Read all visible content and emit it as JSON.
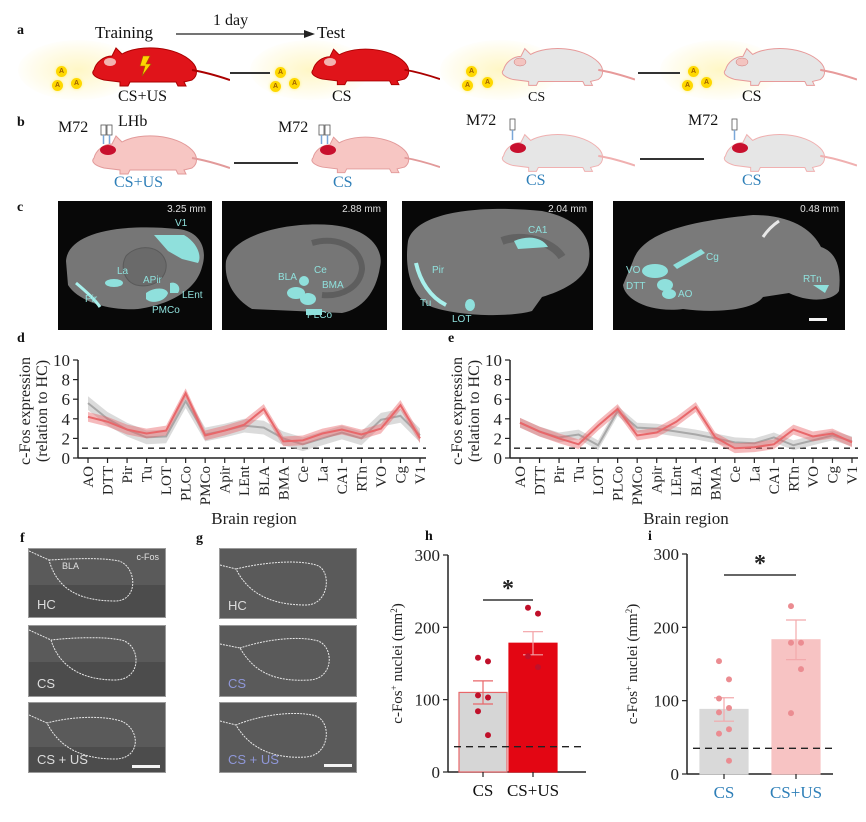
{
  "panel_labels": {
    "a": "a",
    "b": "b",
    "c": "c",
    "d": "d",
    "e": "e",
    "f": "f",
    "g": "g",
    "h": "h",
    "i": "i"
  },
  "panel_a": {
    "training": "Training",
    "interval": "1 day",
    "test": "Test",
    "odor_symbol": "A",
    "captions": [
      "CS+US",
      "CS",
      "CS",
      "CS"
    ],
    "colors": {
      "fear_mouse": "#e0141a",
      "control_mouse": "#e6e6e6",
      "odor": "#ffd800"
    }
  },
  "panel_b": {
    "implant": [
      "M72",
      "M72",
      "M72",
      "M72"
    ],
    "target": "LHb",
    "captions": [
      "CS+US",
      "CS",
      "CS",
      "CS"
    ],
    "colors": {
      "caption": "#2e7fb8",
      "pink_mouse": "#f7c6c3",
      "gray_mouse": "#e6e6e6"
    }
  },
  "panel_c": {
    "sections": [
      {
        "depth": "3.25 mm",
        "regions": [
          "V1",
          "La",
          "APir",
          "Pir",
          "LEnt",
          "PMCo"
        ]
      },
      {
        "depth": "2.88 mm",
        "regions": [
          "BLA",
          "Ce",
          "BMA",
          "PLCo"
        ]
      },
      {
        "depth": "2.04 mm",
        "regions": [
          "CA1",
          "Pir",
          "Tu",
          "LOT"
        ]
      },
      {
        "depth": "0.48 mm",
        "regions": [
          "Cg",
          "VO",
          "DTT",
          "AO",
          "RTn"
        ]
      }
    ],
    "roi_color": "#8fe0dc"
  },
  "panel_f": {
    "stain": "c-Fos",
    "region": "BLA",
    "conditions": [
      "HC",
      "CS",
      "CS + US"
    ]
  },
  "panel_g": {
    "conditions": [
      "HC",
      "CS",
      "CS + US"
    ]
  },
  "chart_data": [
    {
      "id": "d",
      "type": "line",
      "ylabel": "c-Fos expression\n(relation to HC)",
      "ylabel_lines": [
        "c-Fos expression",
        "(relation to HC)"
      ],
      "xlabel": "Brain region",
      "ylim": [
        0,
        10
      ],
      "yticks": [
        "0",
        "2",
        "4",
        "6",
        "8",
        "10"
      ],
      "baseline": 1,
      "categories": [
        "AO",
        "DTT",
        "Pir",
        "Tu",
        "LOT",
        "PLCo",
        "PMCo",
        "Apir",
        "LEnt",
        "BLA",
        "BMA",
        "Ce",
        "La",
        "CA1",
        "RTn",
        "VO",
        "Cg",
        "V1"
      ],
      "series": [
        {
          "name": "gray",
          "color": "#b8b8b8",
          "values": [
            5.6,
            4.0,
            2.9,
            2.1,
            2.2,
            5.8,
            2.4,
            2.8,
            3.3,
            3.1,
            2.0,
            1.4,
            2.0,
            2.6,
            2.0,
            3.9,
            4.3,
            2.3
          ],
          "sem": 0.7
        },
        {
          "name": "red",
          "color": "#e8676a",
          "values": [
            4.2,
            3.7,
            2.9,
            2.5,
            2.8,
            6.6,
            2.3,
            2.8,
            3.4,
            5.0,
            1.7,
            1.8,
            2.5,
            2.9,
            2.4,
            3.0,
            5.4,
            2.0
          ],
          "sem": 0.5
        }
      ]
    },
    {
      "id": "e",
      "type": "line",
      "ylabel": "c-Fos expression\n(relation to HC)",
      "ylabel_lines": [
        "c-Fos expression",
        "(relation to HC)"
      ],
      "xlabel": "Brain region",
      "ylim": [
        0,
        10
      ],
      "yticks": [
        "0",
        "2",
        "4",
        "6",
        "8",
        "10"
      ],
      "baseline": 1,
      "categories": [
        "AO",
        "DTT",
        "Pir",
        "Tu",
        "LOT",
        "PLCo",
        "PMCo",
        "Apir",
        "LEnt",
        "BLA",
        "BMA",
        "Ce",
        "La",
        "CA1",
        "RTn",
        "VO",
        "Cg",
        "V1"
      ],
      "series": [
        {
          "name": "gray",
          "color": "#b8b8b8",
          "values": [
            3.6,
            2.7,
            2.1,
            2.4,
            1.3,
            4.8,
            3.1,
            3.0,
            2.7,
            2.4,
            2.0,
            1.6,
            1.5,
            2.1,
            1.3,
            1.8,
            2.3,
            1.7
          ],
          "sem": 0.5
        },
        {
          "name": "red",
          "color": "#e8676a",
          "values": [
            3.6,
            2.7,
            2.0,
            1.4,
            3.3,
            5.0,
            2.3,
            2.6,
            3.7,
            5.2,
            2.1,
            1.0,
            1.1,
            1.4,
            2.9,
            2.2,
            2.5,
            1.6
          ],
          "sem": 0.5
        }
      ]
    },
    {
      "id": "h",
      "type": "bar",
      "ylabel": "c-Fos+ nuclei (mm2)",
      "ylabel_parts": [
        "c-Fos",
        "+",
        " nuclei (mm",
        "2",
        ")"
      ],
      "ylim": [
        0,
        300
      ],
      "yticks": [
        "0",
        "100",
        "200",
        "300"
      ],
      "categories": [
        "CS",
        "CS+US"
      ],
      "values": [
        110,
        178
      ],
      "sem": [
        16,
        16
      ],
      "points": [
        [
          158,
          153,
          106,
          103,
          84,
          51
        ],
        [
          227,
          219,
          160,
          145
        ]
      ],
      "baseline": 35,
      "significance": "*",
      "colors": {
        "bar": [
          "#d6d6d6",
          "#e30613"
        ],
        "edge": [
          "#e8676a",
          "#e30613"
        ],
        "point": "#c0102a",
        "label": "#111111"
      }
    },
    {
      "id": "i",
      "type": "bar",
      "ylabel": "c-Fos+ nuclei (mm2)",
      "ylabel_parts": [
        "c-Fos",
        "+",
        " nuclei (mm",
        "2",
        ")"
      ],
      "ylim": [
        0,
        300
      ],
      "yticks": [
        "0",
        "100",
        "200",
        "300"
      ],
      "categories": [
        "CS",
        "CS+US"
      ],
      "values": [
        88,
        183
      ],
      "sem": [
        16,
        27
      ],
      "points": [
        [
          154,
          129,
          103,
          90,
          84,
          61,
          55,
          18
        ],
        [
          229,
          179,
          179,
          143,
          83
        ]
      ],
      "baseline": 35,
      "significance": "*",
      "colors": {
        "bar": [
          "#d9d9d9",
          "#f7c3c3"
        ],
        "edge": [
          "#d9d9d9",
          "#f7c3c3"
        ],
        "point": "#eb8c91",
        "label": "#2e7fb8"
      }
    }
  ]
}
